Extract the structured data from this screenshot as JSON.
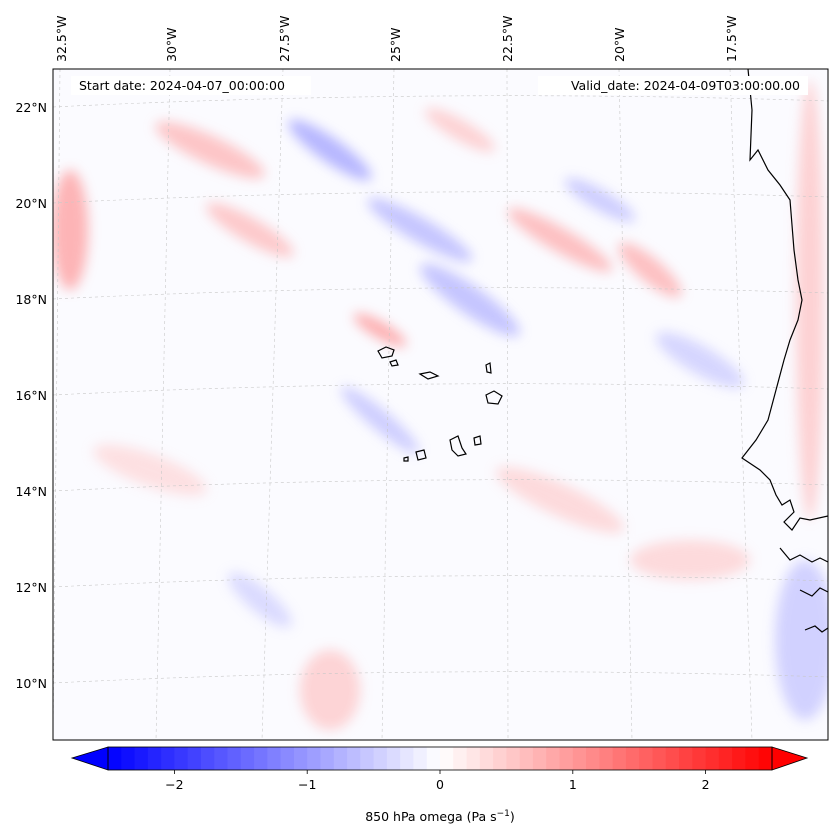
{
  "header": {
    "start_date": "Start date: 2024-04-07_00:00:00",
    "valid_date": "Valid_date: 2024-04-09T03:00:00.00"
  },
  "map": {
    "longitude_labels": [
      "32.5°W",
      "30°W",
      "27.5°W",
      "25°W",
      "22.5°W",
      "20°W",
      "17.5°W"
    ],
    "latitude_labels": [
      "22°N",
      "20°N",
      "18°N",
      "16°N",
      "14°N",
      "12°N",
      "10°N"
    ],
    "field_colors": {
      "negative": "#0000ff",
      "zero": "#ffffff",
      "positive": "#ff0000"
    }
  },
  "colorbar": {
    "label": "850 hPa omega (Pa s",
    "label_exponent": "−1",
    "label_close": ")",
    "ticks": [
      {
        "value": -2,
        "text": "−2"
      },
      {
        "value": -1,
        "text": "−1"
      },
      {
        "value": 0,
        "text": "0"
      },
      {
        "value": 1,
        "text": "1"
      },
      {
        "value": 2,
        "text": "2"
      }
    ],
    "vmin": -2.5,
    "vmax": 2.5
  }
}
